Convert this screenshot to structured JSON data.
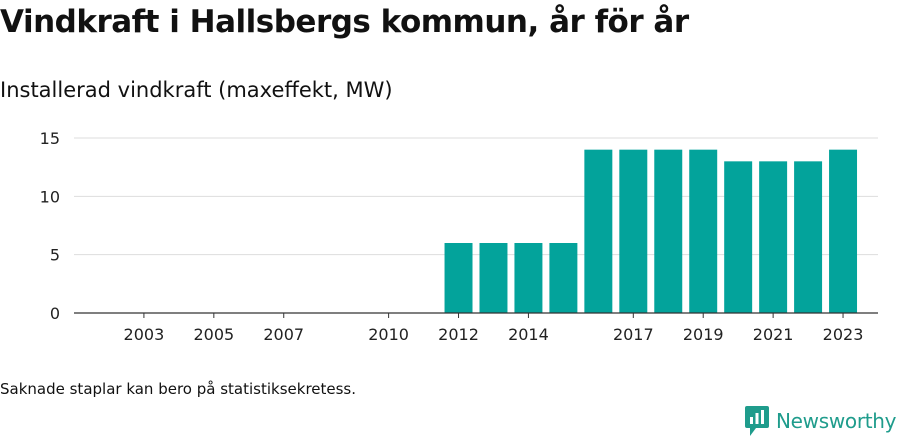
{
  "header": {
    "title": "Vindkraft i Hallsbergs kommun, år för år",
    "subtitle": "Installerad vindkraft (maxeffekt, MW)"
  },
  "footer": {
    "note": "Saknade staplar kan bero på statistiksekretess.",
    "brand": "Newsworthy"
  },
  "colors": {
    "bar": "#03a39b",
    "grid": "#dddddd",
    "axis": "#333333",
    "brand": "#1f9c8c"
  },
  "chart_data": {
    "type": "bar",
    "title": "Vindkraft i Hallsbergs kommun, år för år",
    "ylabel": "Installerad vindkraft (maxeffekt, MW)",
    "xlabel": "",
    "ylim": [
      0,
      15
    ],
    "yticks": [
      0,
      5,
      10,
      15
    ],
    "xlim": [
      2001,
      2024
    ],
    "categories": [
      2012,
      2013,
      2014,
      2015,
      2016,
      2017,
      2018,
      2019,
      2020,
      2021,
      2022,
      2023
    ],
    "values": [
      6,
      6,
      6,
      6,
      14,
      14,
      14,
      14,
      13,
      13,
      13,
      14
    ],
    "xtick_labels": [
      "2003",
      "2005",
      "2007",
      "2010",
      "2012",
      "2014",
      "2017",
      "2019",
      "2021",
      "2023"
    ],
    "grid": true,
    "legend": "none"
  }
}
